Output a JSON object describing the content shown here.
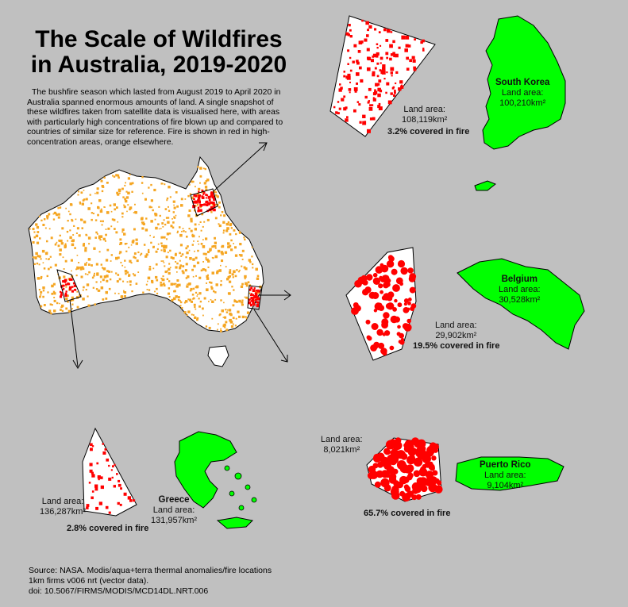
{
  "title_line1": "The Scale of Wildfires",
  "title_line2": "in Australia, 2019-2020",
  "intro": "The bushfire season which lasted from August 2019 to April 2020 in Australia spanned enormous amounts of land. A single snapshot of these wildfires taken from satellite data is visualised here, with areas with particularly high concentrations of fire blown up and compared to countries of similar size for reference. Fire is shown in red in high-concentration areas, orange elsewhere.",
  "colors": {
    "background": "#c0c0c0",
    "fire_high": "#ff0000",
    "fire_low": "#f5a623",
    "country": "#00ff00",
    "land": "#ffffff"
  },
  "comparisons": [
    {
      "id": "south-korea",
      "fire_area_label": "Land area:",
      "fire_area_value": "108,119km²",
      "covered": "3.2% covered in fire",
      "country": "South Korea",
      "country_area_label": "Land area:",
      "country_area_value": "100,210km²"
    },
    {
      "id": "belgium",
      "fire_area_label": "Land area:",
      "fire_area_value": "29,902km²",
      "covered": "19.5% covered in fire",
      "country": "Belgium",
      "country_area_label": "Land area:",
      "country_area_value": "30,528km²"
    },
    {
      "id": "greece",
      "fire_area_label": "Land area:",
      "fire_area_value": "136,287km²",
      "covered": "2.8% covered in fire",
      "country": "Greece",
      "country_area_label": "Land area:",
      "country_area_value": "131,957km²"
    },
    {
      "id": "puerto-rico",
      "fire_area_label": "Land area:",
      "fire_area_value": "8,021km²",
      "covered": "65.7% covered in fire",
      "country": "Puerto Rico",
      "country_area_label": "Land area:",
      "country_area_value": "9,104km²"
    }
  ],
  "source": "Source: NASA. Modis/aqua+terra thermal anomalies/fire locations\n1km firms v006 nrt (vector data).\ndoi: 10.5067/FIRMS/MODIS/MCD14DL.NRT.006"
}
